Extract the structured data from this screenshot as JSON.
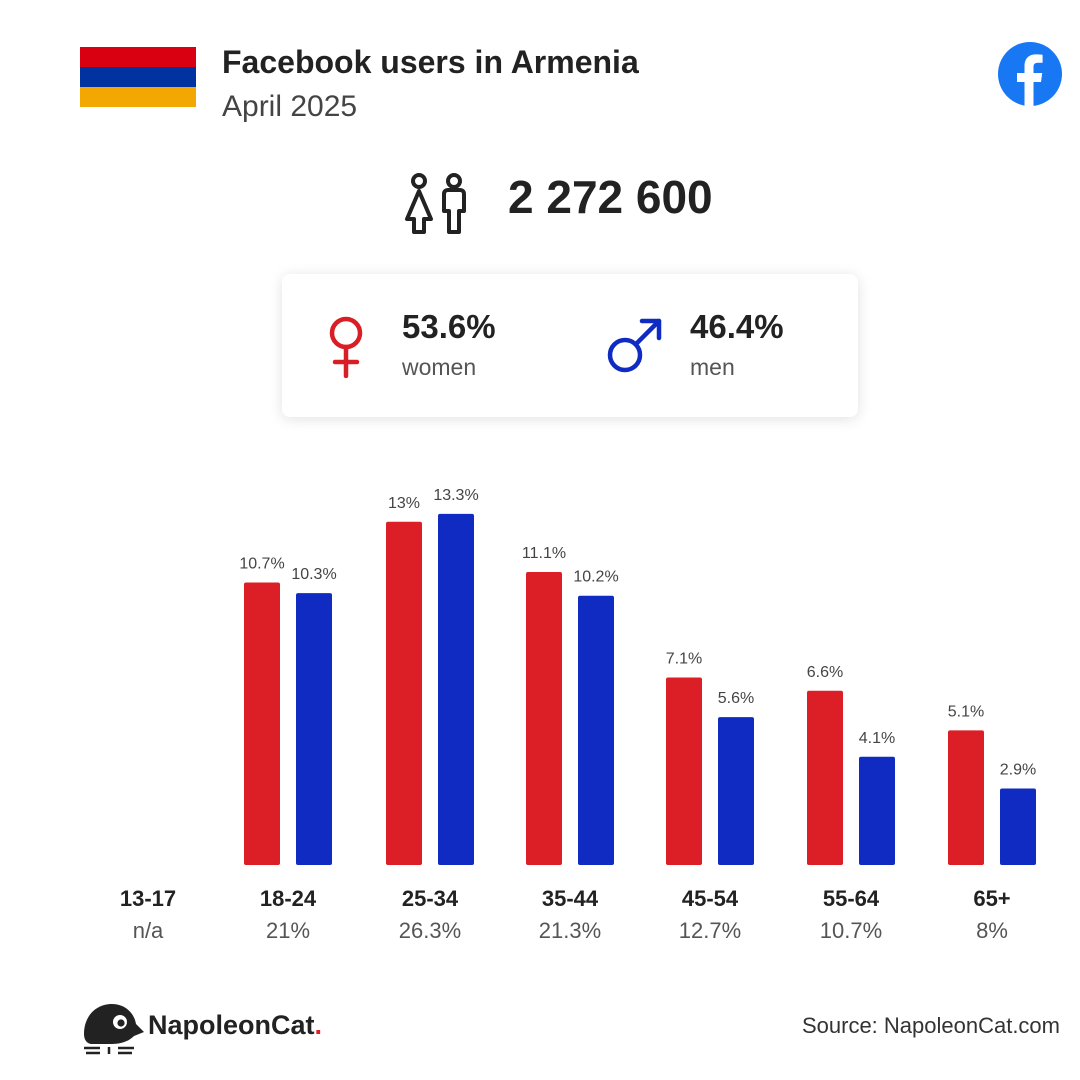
{
  "header": {
    "title": "Facebook users in Armenia",
    "date": "April 2025",
    "flag_colors": [
      "#d90012",
      "#0033a0",
      "#f2a800"
    ]
  },
  "total": {
    "value": "2 272 600",
    "icon": "users-icon"
  },
  "gender": {
    "women": {
      "pct": "53.6%",
      "label": "women",
      "color": "#d91f26",
      "icon": "female-icon"
    },
    "men": {
      "pct": "46.4%",
      "label": "men",
      "color": "#0f2bc2",
      "icon": "male-icon"
    }
  },
  "chart_data": {
    "type": "bar",
    "categories": [
      "13-17",
      "18-24",
      "25-34",
      "35-44",
      "45-54",
      "55-64",
      "65+"
    ],
    "category_totals": [
      "n/a",
      "21%",
      "26.3%",
      "21.3%",
      "12.7%",
      "10.7%",
      "8%"
    ],
    "series": [
      {
        "values": [
          null,
          10.7,
          13,
          11.1,
          7.1,
          6.6,
          5.1
        ],
        "labels": [
          "",
          "10.7%",
          "13%",
          "11.1%",
          "7.1%",
          "6.6%",
          "5.1%"
        ],
        "color": "#dc1f26"
      },
      {
        "values": [
          null,
          10.3,
          13.3,
          10.2,
          5.6,
          4.1,
          2.9
        ],
        "labels": [
          "",
          "10.3%",
          "13.3%",
          "10.2%",
          "5.6%",
          "4.1%",
          "2.9%"
        ],
        "color": "#0f2bc2"
      }
    ],
    "grid": false,
    "legend": "none"
  },
  "footer": {
    "brand_name": "NapoleonCat",
    "brand_dot": ".",
    "source": "Source: NapoleonCat.com"
  },
  "icons": {
    "facebook": "facebook-icon",
    "brand": "napoleoncat-logo"
  }
}
